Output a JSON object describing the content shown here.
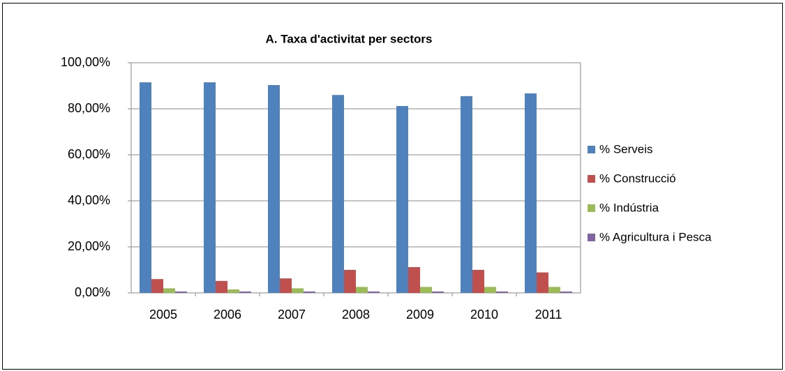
{
  "chart_data": {
    "type": "bar",
    "title": "A. Taxa d'activitat per sectors",
    "categories": [
      "2005",
      "2006",
      "2007",
      "2008",
      "2009",
      "2010",
      "2011"
    ],
    "series": [
      {
        "name": "% Serveis",
        "color": "#4f81bd",
        "values": [
          91.5,
          91.5,
          90.3,
          86.0,
          81.2,
          85.5,
          86.7
        ]
      },
      {
        "name": "% Construcció",
        "color": "#c0504d",
        "values": [
          6.0,
          5.2,
          6.3,
          10.0,
          11.2,
          10.0,
          8.9
        ]
      },
      {
        "name": "% Indústria",
        "color": "#9bbb59",
        "values": [
          2.0,
          1.5,
          2.0,
          2.6,
          2.6,
          2.6,
          2.6
        ]
      },
      {
        "name": "% Agricultura i Pesca",
        "color": "#8064a2",
        "values": [
          0.6,
          0.6,
          0.6,
          0.6,
          0.6,
          0.6,
          0.6
        ]
      }
    ],
    "ylim": [
      0,
      100
    ],
    "yticks": [
      {
        "value": 0,
        "label": "0,00%"
      },
      {
        "value": 20,
        "label": "20,00%"
      },
      {
        "value": 40,
        "label": "40,00%"
      },
      {
        "value": 60,
        "label": "60,00%"
      },
      {
        "value": 80,
        "label": "80,00%"
      },
      {
        "value": 100,
        "label": "100,00%"
      }
    ],
    "grid": true,
    "legend": "right"
  }
}
